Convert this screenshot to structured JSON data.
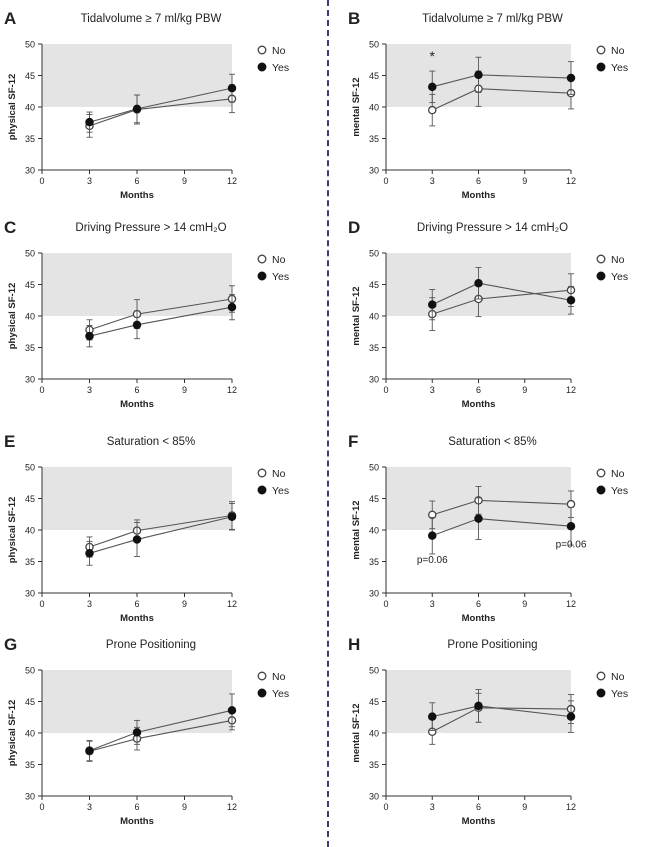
{
  "chart_data": [
    {
      "letter": "A",
      "title": "Tidalvolume ≥ 7 ml/kg PBW",
      "type": "line",
      "xlabel": "Months",
      "ylabel": "physical SF-12",
      "xticks": [
        0,
        3,
        6,
        9,
        12
      ],
      "yticks": [
        30,
        35,
        40,
        45,
        50
      ],
      "xlim": [
        0,
        12
      ],
      "ylim": [
        30,
        50
      ],
      "shaded_band": [
        40,
        50
      ],
      "x": [
        3,
        6,
        12
      ],
      "series": [
        {
          "name": "No",
          "marker": "open",
          "values": [
            37.0,
            39.6,
            41.3
          ],
          "error": [
            1.8,
            2.3,
            2.2
          ]
        },
        {
          "name": "Yes",
          "marker": "filled",
          "values": [
            37.6,
            39.7,
            43.0
          ],
          "error": [
            1.6,
            2.2,
            2.2
          ]
        }
      ],
      "annotations": []
    },
    {
      "letter": "B",
      "title": "Tidalvolume ≥ 7 ml/kg PBW",
      "type": "line",
      "xlabel": "Months",
      "ylabel": "mental SF-12",
      "xticks": [
        0,
        3,
        6,
        9,
        12
      ],
      "yticks": [
        30,
        35,
        40,
        45,
        50
      ],
      "xlim": [
        0,
        12
      ],
      "ylim": [
        30,
        50
      ],
      "shaded_band": [
        40,
        50
      ],
      "x": [
        3,
        6,
        12
      ],
      "series": [
        {
          "name": "No",
          "marker": "open",
          "values": [
            39.5,
            42.9,
            42.2
          ],
          "error": [
            2.5,
            2.8,
            2.5
          ]
        },
        {
          "name": "Yes",
          "marker": "filled",
          "values": [
            43.2,
            45.1,
            44.6
          ],
          "error": [
            2.5,
            2.8,
            2.6
          ]
        }
      ],
      "annotations": [
        {
          "text": "*",
          "x": 3,
          "y": 47.3
        }
      ]
    },
    {
      "letter": "C",
      "title": "Driving Pressure > 14 cmH₂O",
      "type": "line",
      "xlabel": "Months",
      "ylabel": "physical SF-12",
      "xticks": [
        0,
        3,
        6,
        9,
        12
      ],
      "yticks": [
        30,
        35,
        40,
        45,
        50
      ],
      "xlim": [
        0,
        12
      ],
      "ylim": [
        30,
        50
      ],
      "shaded_band": [
        40,
        50
      ],
      "x": [
        3,
        6,
        12
      ],
      "series": [
        {
          "name": "No",
          "marker": "open",
          "values": [
            37.8,
            40.3,
            42.7
          ],
          "error": [
            1.6,
            2.3,
            2.1
          ]
        },
        {
          "name": "Yes",
          "marker": "filled",
          "values": [
            36.8,
            38.6,
            41.4
          ],
          "error": [
            1.7,
            2.2,
            2.0
          ]
        }
      ],
      "annotations": []
    },
    {
      "letter": "D",
      "title": "Driving Pressure > 14 cmH₂O",
      "type": "line",
      "xlabel": "Months",
      "ylabel": "mental SF-12",
      "xticks": [
        0,
        3,
        6,
        9,
        12
      ],
      "yticks": [
        30,
        35,
        40,
        45,
        50
      ],
      "xlim": [
        0,
        12
      ],
      "ylim": [
        30,
        50
      ],
      "shaded_band": [
        40,
        50
      ],
      "x": [
        3,
        6,
        12
      ],
      "series": [
        {
          "name": "No",
          "marker": "open",
          "values": [
            40.3,
            42.7,
            44.1
          ],
          "error": [
            2.6,
            2.8,
            2.6
          ]
        },
        {
          "name": "Yes",
          "marker": "filled",
          "values": [
            41.8,
            45.2,
            42.5
          ],
          "error": [
            2.4,
            2.5,
            2.2
          ]
        }
      ],
      "annotations": []
    },
    {
      "letter": "E",
      "title": "Saturation < 85%",
      "type": "line",
      "xlabel": "Months",
      "ylabel": "physical SF-12",
      "xticks": [
        0,
        3,
        6,
        9,
        12
      ],
      "yticks": [
        30,
        35,
        40,
        45,
        50
      ],
      "xlim": [
        0,
        12
      ],
      "ylim": [
        30,
        50
      ],
      "shaded_band": [
        40,
        50
      ],
      "x": [
        3,
        6,
        12
      ],
      "series": [
        {
          "name": "No",
          "marker": "open",
          "values": [
            37.3,
            39.9,
            42.3
          ],
          "error": [
            1.6,
            1.7,
            2.2
          ]
        },
        {
          "name": "Yes",
          "marker": "filled",
          "values": [
            36.3,
            38.5,
            42.1
          ],
          "error": [
            1.9,
            2.7,
            2.1
          ]
        }
      ],
      "annotations": []
    },
    {
      "letter": "F",
      "title": "Saturation < 85%",
      "type": "line",
      "xlabel": "Months",
      "ylabel": "mental SF-12",
      "xticks": [
        0,
        3,
        6,
        9,
        12
      ],
      "yticks": [
        30,
        35,
        40,
        45,
        50
      ],
      "xlim": [
        0,
        12
      ],
      "ylim": [
        30,
        50
      ],
      "shaded_band": [
        40,
        50
      ],
      "x": [
        3,
        6,
        12
      ],
      "series": [
        {
          "name": "No",
          "marker": "open",
          "values": [
            42.4,
            44.7,
            44.1
          ],
          "error": [
            2.2,
            2.2,
            2.1
          ]
        },
        {
          "name": "Yes",
          "marker": "filled",
          "values": [
            39.1,
            41.8,
            40.6
          ],
          "error": [
            2.9,
            3.3,
            3.0
          ]
        }
      ],
      "annotations": [
        {
          "text": "p=0.06",
          "x": 3,
          "y": 34.8
        },
        {
          "text": "p=0.06",
          "x": 12,
          "y": 37.2
        }
      ]
    },
    {
      "letter": "G",
      "title": "Prone Positioning",
      "type": "line",
      "xlabel": "Months",
      "ylabel": "physical SF-12",
      "xticks": [
        0,
        3,
        6,
        9,
        12
      ],
      "yticks": [
        30,
        35,
        40,
        45,
        50
      ],
      "xlim": [
        0,
        12
      ],
      "ylim": [
        30,
        50
      ],
      "shaded_band": [
        40,
        50
      ],
      "x": [
        3,
        6,
        12
      ],
      "series": [
        {
          "name": "No",
          "marker": "open",
          "values": [
            37.1,
            39.1,
            42.0
          ],
          "error": [
            1.6,
            1.8,
            1.5
          ]
        },
        {
          "name": "Yes",
          "marker": "filled",
          "values": [
            37.2,
            40.1,
            43.6
          ],
          "error": [
            1.6,
            1.9,
            2.6
          ]
        }
      ],
      "annotations": []
    },
    {
      "letter": "H",
      "title": "Prone Positioning",
      "type": "line",
      "xlabel": "Months",
      "ylabel": "mental SF-12",
      "xticks": [
        0,
        3,
        6,
        9,
        12
      ],
      "yticks": [
        30,
        35,
        40,
        45,
        50
      ],
      "xlim": [
        0,
        12
      ],
      "ylim": [
        30,
        50
      ],
      "shaded_band": [
        40,
        50
      ],
      "x": [
        3,
        6,
        12
      ],
      "series": [
        {
          "name": "No",
          "marker": "open",
          "values": [
            40.2,
            44.0,
            43.8
          ],
          "error": [
            2.0,
            2.3,
            2.3
          ]
        },
        {
          "name": "Yes",
          "marker": "filled",
          "values": [
            42.6,
            44.3,
            42.6
          ],
          "error": [
            2.2,
            2.6,
            2.5
          ]
        }
      ],
      "annotations": []
    }
  ],
  "colors": {
    "shade": "#e4e4e4",
    "line": "#555555",
    "text": "#222222",
    "divider": "#3b3d70"
  }
}
